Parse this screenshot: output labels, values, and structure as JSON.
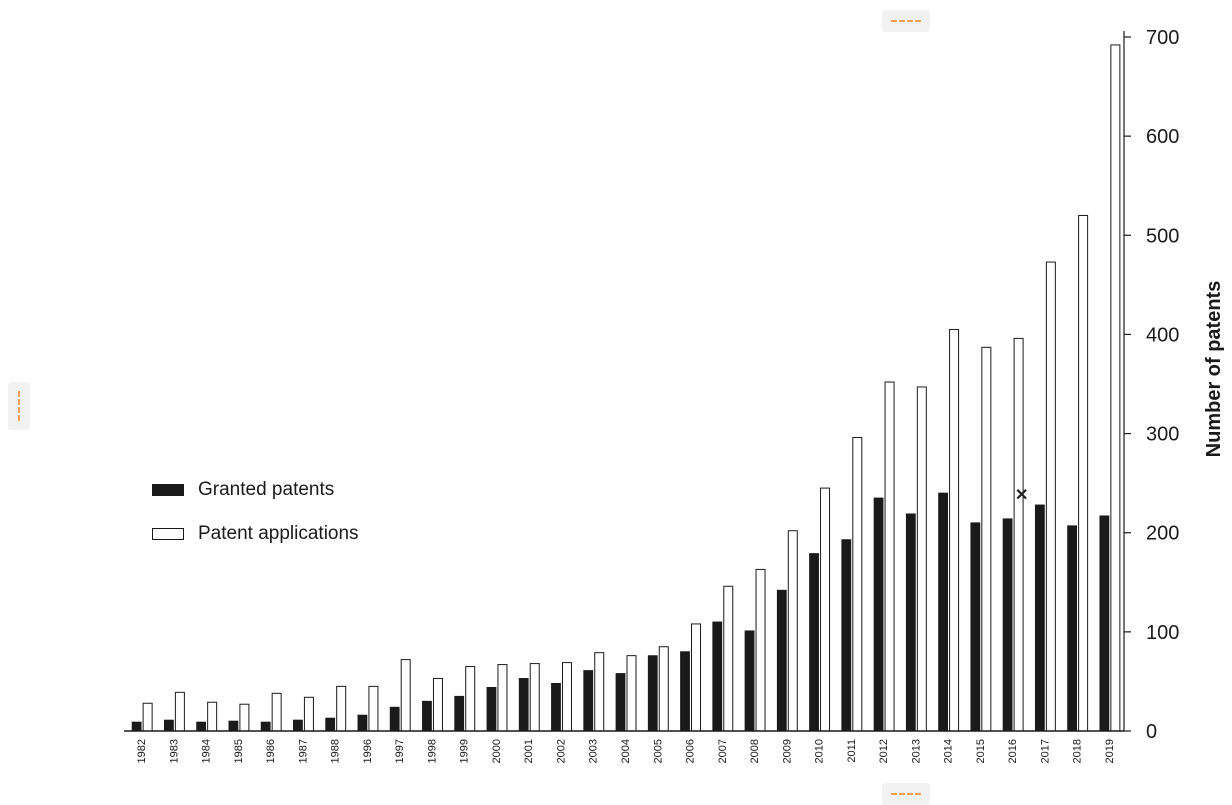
{
  "chart_data": {
    "type": "bar",
    "categories": [
      "1982",
      "1983",
      "1984",
      "1985",
      "1986",
      "1987",
      "1988",
      "1996",
      "1997",
      "1998",
      "1999",
      "2000",
      "2001",
      "2002",
      "2003",
      "2004",
      "2005",
      "2006",
      "2007",
      "2008",
      "2009",
      "2010",
      "2011",
      "2012",
      "2013",
      "2014",
      "2015",
      "2016",
      "2017",
      "2018",
      "2019"
    ],
    "series": [
      {
        "name": "Granted patents",
        "color": "#1a1a1a",
        "values": [
          9,
          11,
          9,
          10,
          9,
          11,
          13,
          16,
          24,
          30,
          35,
          44,
          53,
          48,
          61,
          58,
          76,
          80,
          110,
          101,
          142,
          179,
          193,
          235,
          219,
          240,
          210,
          214,
          228,
          207,
          217
        ]
      },
      {
        "name": "Patent applications",
        "color": "#ffffff",
        "values": [
          28,
          39,
          29,
          27,
          38,
          34,
          45,
          45,
          72,
          53,
          65,
          67,
          68,
          69,
          79,
          76,
          85,
          108,
          146,
          163,
          202,
          245,
          296,
          352,
          347,
          405,
          387,
          396,
          473,
          520,
          692
        ]
      }
    ],
    "ylabel": "Number of patents",
    "xlabel": "",
    "ylim": [
      0,
      700
    ],
    "yticks": [
      0,
      100,
      200,
      300,
      400,
      500,
      600,
      700
    ],
    "y_axis_side": "right",
    "legend_position": "center-left",
    "grid": false
  }
}
